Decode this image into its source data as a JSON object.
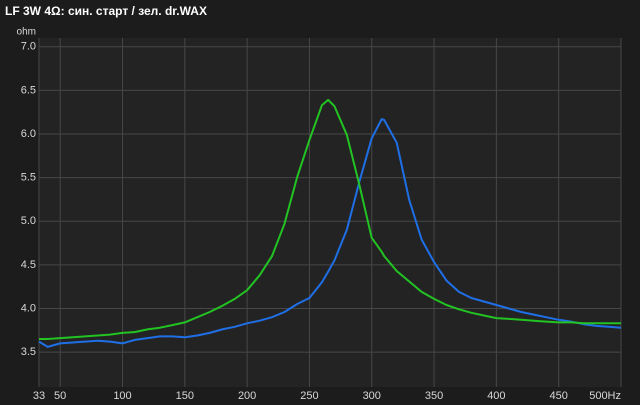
{
  "chart_data": {
    "type": "line",
    "title": "LF 3W 4Ω: син. старт / зел. dr.WAX",
    "y_label": "ohm",
    "x": [
      33,
      40,
      50,
      60,
      70,
      80,
      90,
      100,
      110,
      120,
      130,
      140,
      150,
      160,
      170,
      180,
      190,
      200,
      210,
      220,
      230,
      240,
      250,
      260,
      265,
      270,
      280,
      290,
      300,
      308,
      310,
      320,
      330,
      340,
      350,
      360,
      370,
      380,
      390,
      400,
      410,
      420,
      430,
      440,
      450,
      460,
      470,
      480,
      490,
      500
    ],
    "series": [
      {
        "color": "#1f6fe6",
        "values": [
          3.62,
          3.56,
          3.6,
          3.61,
          3.62,
          3.63,
          3.62,
          3.6,
          3.64,
          3.66,
          3.68,
          3.68,
          3.67,
          3.69,
          3.72,
          3.76,
          3.79,
          3.83,
          3.86,
          3.9,
          3.96,
          4.05,
          4.12,
          4.3,
          4.42,
          4.55,
          4.9,
          5.45,
          5.95,
          6.17,
          6.16,
          5.9,
          5.25,
          4.79,
          4.53,
          4.32,
          4.19,
          4.12,
          4.08,
          4.04,
          4.0,
          3.96,
          3.93,
          3.9,
          3.87,
          3.85,
          3.82,
          3.8,
          3.79,
          3.78
        ]
      },
      {
        "color": "#22c322",
        "values": [
          3.65,
          3.65,
          3.66,
          3.67,
          3.68,
          3.69,
          3.7,
          3.72,
          3.73,
          3.76,
          3.78,
          3.81,
          3.84,
          3.9,
          3.96,
          4.03,
          4.11,
          4.21,
          4.38,
          4.6,
          4.97,
          5.5,
          5.93,
          6.33,
          6.39,
          6.32,
          5.99,
          5.42,
          4.81,
          4.65,
          4.6,
          4.43,
          4.31,
          4.19,
          4.11,
          4.04,
          3.99,
          3.95,
          3.92,
          3.89,
          3.88,
          3.87,
          3.86,
          3.85,
          3.84,
          3.84,
          3.83,
          3.83,
          3.83,
          3.83
        ]
      }
    ],
    "xlim": [
      33,
      500
    ],
    "xticks": [
      33,
      50,
      100,
      150,
      200,
      250,
      300,
      350,
      400,
      450,
      {
        "value": 500,
        "label": "500Hz"
      }
    ],
    "ylim": [
      3.1,
      7.1
    ],
    "yticks": [
      3.5,
      {
        "value": 4,
        "label": "4.0"
      },
      4.5,
      {
        "value": 5,
        "label": "5.0"
      },
      5.5,
      {
        "value": 6,
        "label": "6.0"
      },
      6.5,
      {
        "value": 7,
        "label": "7.0"
      }
    ],
    "grid": true
  }
}
